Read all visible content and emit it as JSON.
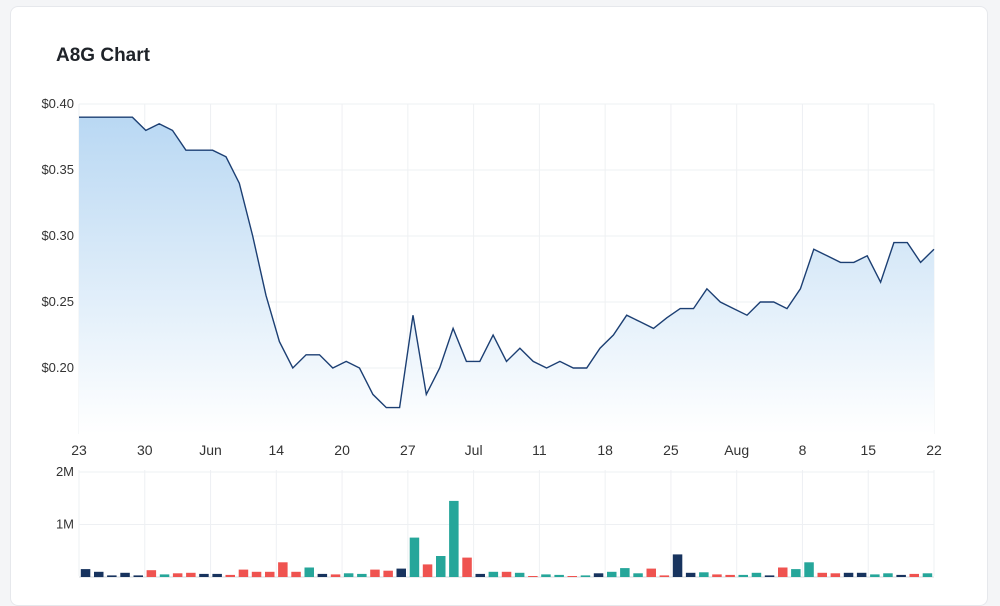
{
  "title": "A8G Chart",
  "colors": {
    "line": "#1c3f73",
    "area_top": "#b9d8f3",
    "area_bottom": "#ffffff",
    "vol_dark": "#17335e",
    "vol_teal": "#26a69a",
    "vol_red": "#ef5350",
    "grid": "#eef0f3"
  },
  "chart_data": [
    {
      "type": "area",
      "series": [
        {
          "name": "",
          "values": [
            0.39,
            0.39,
            0.39,
            0.39,
            0.39,
            0.38,
            0.385,
            0.38,
            0.365,
            0.365,
            0.365,
            0.36,
            0.34,
            0.3,
            0.255,
            0.22,
            0.2,
            0.21,
            0.21,
            0.2,
            0.205,
            0.2,
            0.18,
            0.17,
            0.17,
            0.24,
            0.18,
            0.2,
            0.23,
            0.205,
            0.205,
            0.225,
            0.205,
            0.215,
            0.205,
            0.2,
            0.205,
            0.2,
            0.2,
            0.215,
            0.225,
            0.24,
            0.235,
            0.23,
            0.238,
            0.245,
            0.245,
            0.26,
            0.25,
            0.245,
            0.24,
            0.25,
            0.25,
            0.245,
            0.26,
            0.29,
            0.285,
            0.28,
            0.28,
            0.285,
            0.265,
            0.295,
            0.295,
            0.28,
            0.29
          ]
        }
      ],
      "x_ticks": [
        "23",
        "30",
        "Jun",
        "14",
        "20",
        "27",
        "Jul",
        "11",
        "18",
        "25",
        "Aug",
        "8",
        "15",
        "22"
      ],
      "y_ticks": [
        "$0.40",
        "$0.35",
        "$0.30",
        "$0.25",
        "$0.20"
      ],
      "ylim": [
        0.15,
        0.4
      ],
      "grid": true
    },
    {
      "type": "bar",
      "series": [
        {
          "name": "",
          "values": [
            150000,
            100000,
            30000,
            80000,
            30000,
            130000,
            50000,
            70000,
            80000,
            60000,
            60000,
            40000,
            140000,
            100000,
            100000,
            280000,
            100000,
            180000,
            60000,
            50000,
            70000,
            60000,
            140000,
            120000,
            160000,
            750000,
            240000,
            400000,
            1450000,
            370000,
            60000,
            100000,
            100000,
            80000,
            20000,
            50000,
            40000,
            20000,
            30000,
            70000,
            100000,
            170000,
            70000,
            160000,
            30000,
            430000,
            80000,
            90000,
            50000,
            40000,
            40000,
            80000,
            30000,
            180000,
            150000,
            280000,
            80000,
            70000,
            80000,
            80000,
            50000,
            70000,
            40000,
            60000,
            70000
          ]
        }
      ],
      "bar_colors": [
        "d",
        "d",
        "d",
        "d",
        "d",
        "r",
        "t",
        "r",
        "r",
        "d",
        "d",
        "r",
        "r",
        "r",
        "r",
        "r",
        "r",
        "t",
        "d",
        "r",
        "t",
        "t",
        "r",
        "r",
        "d",
        "t",
        "r",
        "t",
        "t",
        "r",
        "d",
        "t",
        "r",
        "t",
        "r",
        "t",
        "t",
        "r",
        "t",
        "d",
        "t",
        "t",
        "t",
        "r",
        "r",
        "d",
        "d",
        "t",
        "r",
        "r",
        "t",
        "t",
        "d",
        "r",
        "t",
        "t",
        "r",
        "r",
        "d",
        "d",
        "t",
        "t",
        "d",
        "r",
        "t"
      ],
      "y_ticks": [
        "2M",
        "1M"
      ],
      "ylim": [
        0,
        2000000
      ]
    }
  ]
}
